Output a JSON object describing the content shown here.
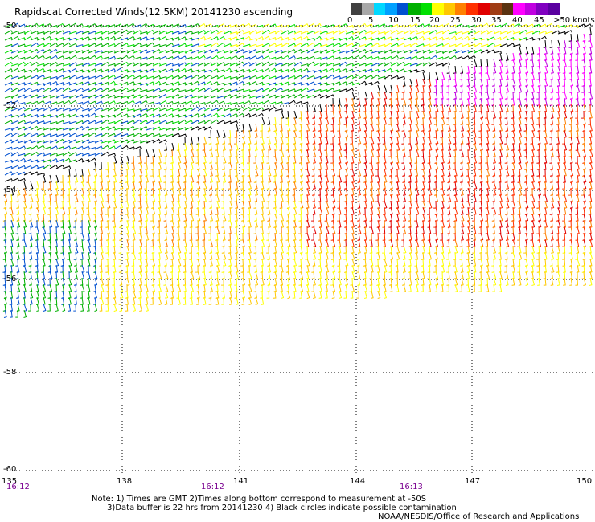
{
  "title": "Rapidscat Corrected Winds(12.5KM) 20141230 ascending",
  "colorbar": {
    "colors": [
      "#404040",
      "#a8a8a8",
      "#00d8ff",
      "#00a0ff",
      "#0050d0",
      "#00b000",
      "#00e000",
      "#ffff00",
      "#ffc800",
      "#ff8000",
      "#ff3000",
      "#e00000",
      "#a03c14",
      "#5a3210",
      "#ff00ff",
      "#c000e0",
      "#8000c0",
      "#5a00a0"
    ],
    "labels": [
      "0",
      "5",
      "10",
      "15",
      "20",
      "25",
      "30",
      "35",
      "40",
      "45",
      ">50 knots"
    ]
  },
  "y_labels": [
    "-50",
    "-52",
    "-54",
    "-56",
    "-58",
    "-60"
  ],
  "x_labels": [
    "135",
    "138",
    "141",
    "144",
    "147",
    "150"
  ],
  "time_labels": [
    "16:12",
    "16:12",
    "16:13"
  ],
  "notes": [
    "Note: 1) Times are GMT 2)Times along bottom correspond to measurement at -50S",
    "      3)Data buffer is 22 hrs from 20141230 4) Black circles indicate possible contamination"
  ],
  "credit": "NOAA/NESDIS/Office of Research and Applications"
}
